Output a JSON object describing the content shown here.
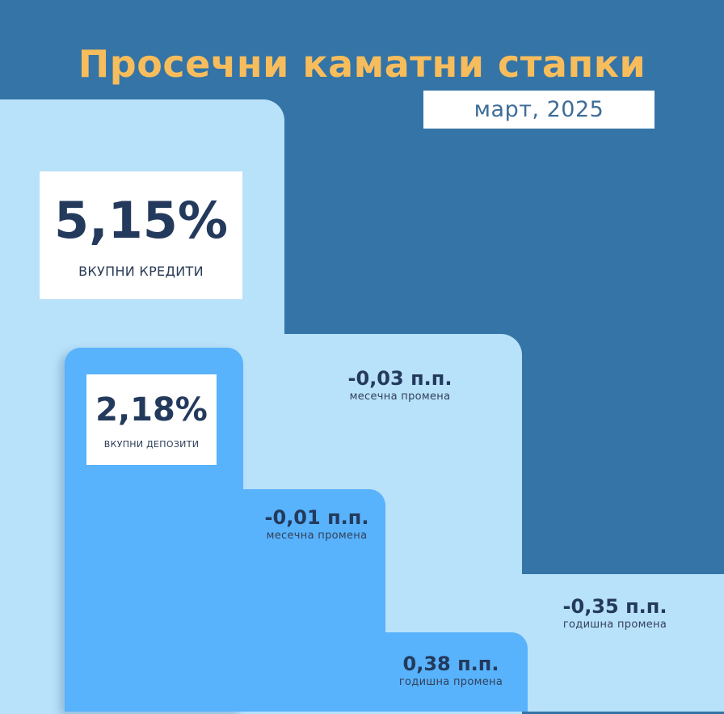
{
  "header": {
    "title": "Просечни каматни стапки",
    "date": "март, 2025"
  },
  "loans": {
    "rate": "5,15%",
    "label": "ВКУПНИ КРЕДИТИ",
    "monthly_change": "-0,03 п.п.",
    "monthly_label": "месечна промена",
    "yearly_change": "-0,35 п.п.",
    "yearly_label": "годишна промена"
  },
  "deposits": {
    "rate": "2,18%",
    "label": "ВКУПНИ ДЕПОЗИТИ",
    "monthly_change": "-0,01 п.п.",
    "monthly_label": "месечна промена",
    "yearly_change": "0,38 п.п.",
    "yearly_label": "годишна промена"
  },
  "colors": {
    "background": "#3574a6",
    "title": "#f7bd5c",
    "loans_steps": "#b8e1fa",
    "deposits_steps": "#58b2fc",
    "text": "#233a5c"
  }
}
